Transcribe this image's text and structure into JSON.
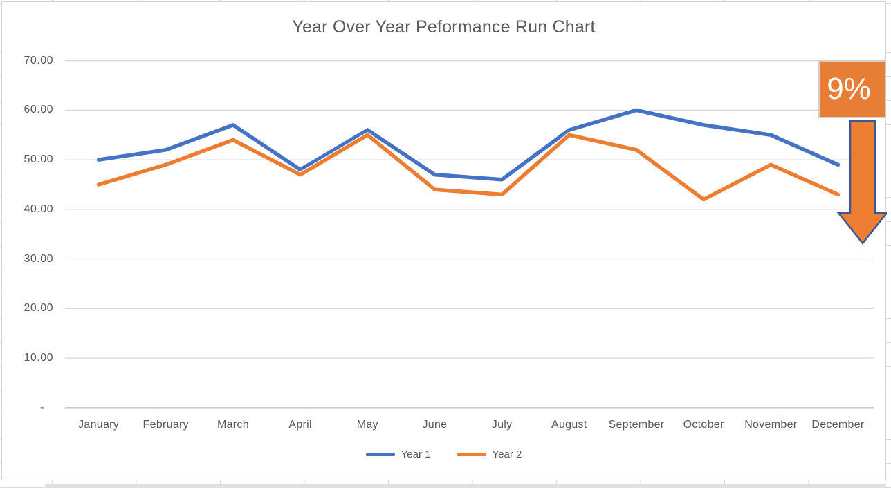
{
  "chart_data": {
    "type": "line",
    "title": "Year Over Year Peformance Run Chart",
    "categories": [
      "January",
      "February",
      "March",
      "April",
      "May",
      "June",
      "July",
      "August",
      "September",
      "October",
      "November",
      "December"
    ],
    "series": [
      {
        "name": "Year 1",
        "color": "#4472C4",
        "values": [
          50,
          52,
          57,
          48,
          56,
          47,
          46,
          56,
          60,
          57,
          55,
          49
        ]
      },
      {
        "name": "Year 2",
        "color": "#ED7D31",
        "values": [
          45,
          49,
          54,
          47,
          55,
          44,
          43,
          55,
          52,
          42,
          49,
          43
        ]
      }
    ],
    "xlabel": "",
    "ylabel": "",
    "ylim": [
      0,
      70
    ],
    "y_tick_step": 10,
    "y_tick_labels": [
      "-",
      "10.00",
      "20.00",
      "30.00",
      "40.00",
      "50.00",
      "60.00",
      "70.00"
    ],
    "grid": true,
    "legend_position": "bottom"
  },
  "annotation": {
    "label": "9%",
    "shape": "down-arrow",
    "box_fill": "#E87D35",
    "box_border": "#D3CDC6",
    "text_color": "#FFFFFF",
    "arrow_fill": "#ED7D31",
    "arrow_border": "#3A5796"
  },
  "colors": {
    "title_text": "#595959",
    "axis_text": "#595959",
    "gridline": "#D9D9D9",
    "axis_line": "#C1C1C1",
    "chart_background": "#FFFFFF",
    "sheet_gridline": "#D9D9D9",
    "series_halo": "#FFFFFF"
  }
}
